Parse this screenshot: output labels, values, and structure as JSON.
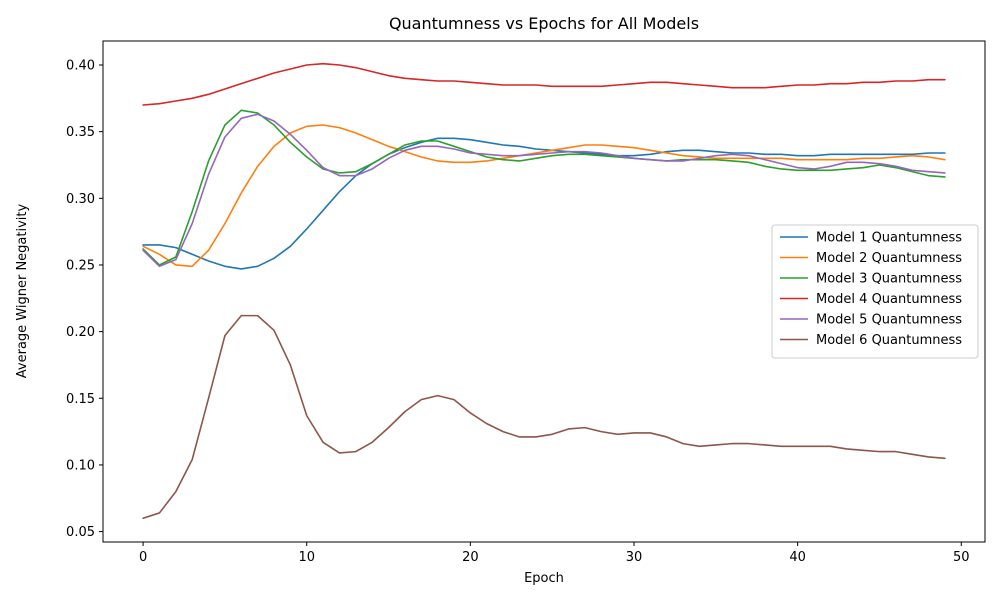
{
  "chart_data": {
    "type": "line",
    "title": "Quantumness vs Epochs for All Models",
    "xlabel": "Epoch",
    "ylabel": "Average Wigner Negativity",
    "xlim": [
      -2.45,
      51.45
    ],
    "ylim": [
      0.0422,
      0.418
    ],
    "xticks": [
      0,
      10,
      20,
      30,
      40,
      50
    ],
    "yticks": [
      0.05,
      0.1,
      0.15,
      0.2,
      0.25,
      0.3,
      0.35,
      0.4
    ],
    "legend_position": "center-right",
    "grid": false,
    "series": [
      {
        "name": "Model 1 Quantumness",
        "color": "#1f77b4",
        "values": [
          0.265,
          0.265,
          0.263,
          0.258,
          0.253,
          0.249,
          0.247,
          0.249,
          0.255,
          0.264,
          0.277,
          0.291,
          0.305,
          0.317,
          0.326,
          0.333,
          0.338,
          0.342,
          0.345,
          0.345,
          0.344,
          0.342,
          0.34,
          0.339,
          0.337,
          0.336,
          0.335,
          0.334,
          0.333,
          0.332,
          0.332,
          0.333,
          0.335,
          0.336,
          0.336,
          0.335,
          0.334,
          0.334,
          0.333,
          0.333,
          0.332,
          0.332,
          0.333,
          0.333,
          0.333,
          0.333,
          0.333,
          0.333,
          0.334,
          0.334
        ]
      },
      {
        "name": "Model 2 Quantumness",
        "color": "#ff7f0e",
        "values": [
          0.264,
          0.258,
          0.25,
          0.249,
          0.261,
          0.281,
          0.304,
          0.324,
          0.339,
          0.349,
          0.354,
          0.355,
          0.353,
          0.349,
          0.344,
          0.339,
          0.335,
          0.331,
          0.328,
          0.327,
          0.327,
          0.328,
          0.33,
          0.332,
          0.334,
          0.336,
          0.338,
          0.34,
          0.34,
          0.339,
          0.338,
          0.336,
          0.334,
          0.332,
          0.331,
          0.33,
          0.33,
          0.33,
          0.33,
          0.33,
          0.329,
          0.329,
          0.329,
          0.329,
          0.33,
          0.33,
          0.331,
          0.332,
          0.331,
          0.329
        ]
      },
      {
        "name": "Model 3 Quantumness",
        "color": "#2ca02c",
        "values": [
          0.262,
          0.25,
          0.256,
          0.29,
          0.328,
          0.355,
          0.366,
          0.364,
          0.355,
          0.342,
          0.331,
          0.322,
          0.319,
          0.32,
          0.326,
          0.333,
          0.34,
          0.343,
          0.343,
          0.339,
          0.335,
          0.331,
          0.329,
          0.328,
          0.33,
          0.332,
          0.333,
          0.333,
          0.332,
          0.331,
          0.33,
          0.329,
          0.328,
          0.329,
          0.329,
          0.329,
          0.328,
          0.327,
          0.324,
          0.322,
          0.321,
          0.321,
          0.321,
          0.322,
          0.323,
          0.325,
          0.323,
          0.32,
          0.317,
          0.316
        ]
      },
      {
        "name": "Model 4 Quantumness",
        "color": "#d62728",
        "values": [
          0.37,
          0.371,
          0.373,
          0.375,
          0.378,
          0.382,
          0.386,
          0.39,
          0.394,
          0.397,
          0.4,
          0.401,
          0.4,
          0.398,
          0.395,
          0.392,
          0.39,
          0.389,
          0.388,
          0.388,
          0.387,
          0.386,
          0.385,
          0.385,
          0.385,
          0.384,
          0.384,
          0.384,
          0.384,
          0.385,
          0.386,
          0.387,
          0.387,
          0.386,
          0.385,
          0.384,
          0.383,
          0.383,
          0.383,
          0.384,
          0.385,
          0.385,
          0.386,
          0.386,
          0.387,
          0.387,
          0.388,
          0.388,
          0.389,
          0.389
        ]
      },
      {
        "name": "Model 5 Quantumness",
        "color": "#9467bd",
        "values": [
          0.261,
          0.249,
          0.254,
          0.281,
          0.318,
          0.346,
          0.36,
          0.363,
          0.358,
          0.348,
          0.336,
          0.323,
          0.317,
          0.317,
          0.322,
          0.33,
          0.336,
          0.339,
          0.339,
          0.337,
          0.334,
          0.333,
          0.332,
          0.332,
          0.333,
          0.334,
          0.335,
          0.335,
          0.334,
          0.332,
          0.33,
          0.329,
          0.328,
          0.328,
          0.33,
          0.332,
          0.333,
          0.332,
          0.329,
          0.326,
          0.323,
          0.322,
          0.324,
          0.327,
          0.327,
          0.326,
          0.324,
          0.321,
          0.32,
          0.319
        ]
      },
      {
        "name": "Model 6 Quantumness",
        "color": "#8c564b",
        "values": [
          0.06,
          0.064,
          0.08,
          0.104,
          0.15,
          0.197,
          0.212,
          0.212,
          0.201,
          0.175,
          0.137,
          0.117,
          0.109,
          0.11,
          0.117,
          0.128,
          0.14,
          0.149,
          0.152,
          0.149,
          0.139,
          0.131,
          0.125,
          0.121,
          0.121,
          0.123,
          0.127,
          0.128,
          0.125,
          0.123,
          0.124,
          0.124,
          0.121,
          0.116,
          0.114,
          0.115,
          0.116,
          0.116,
          0.115,
          0.114,
          0.114,
          0.114,
          0.114,
          0.112,
          0.111,
          0.11,
          0.11,
          0.108,
          0.106,
          0.105
        ]
      }
    ]
  }
}
